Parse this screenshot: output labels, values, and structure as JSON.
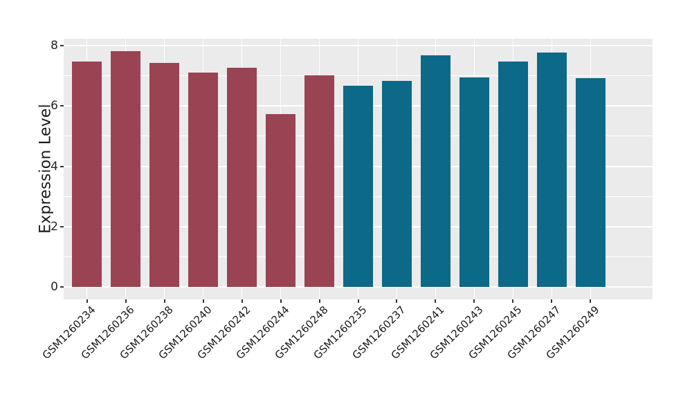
{
  "chart_data": {
    "type": "bar",
    "title": "",
    "xlabel": "",
    "ylabel": "Expression Level",
    "categories": [
      "GSM1260234",
      "GSM1260236",
      "GSM1260238",
      "GSM1260240",
      "GSM1260242",
      "GSM1260244",
      "GSM1260248",
      "GSM1260235",
      "GSM1260237",
      "GSM1260241",
      "GSM1260243",
      "GSM1260245",
      "GSM1260247",
      "GSM1260249"
    ],
    "values": [
      7.48,
      7.82,
      7.43,
      7.11,
      7.27,
      5.72,
      7.01,
      6.67,
      6.82,
      7.69,
      6.95,
      7.48,
      7.76,
      6.92
    ],
    "bar_colors": [
      "#9A4352",
      "#9A4352",
      "#9A4352",
      "#9A4352",
      "#9A4352",
      "#9A4352",
      "#9A4352",
      "#0C6987",
      "#0C6987",
      "#0C6987",
      "#0C6987",
      "#0C6987",
      "#0C6987",
      "#0C6987"
    ],
    "group_colors": {
      "left_group_red": "#9A4352",
      "right_group_teal": "#0C6987"
    },
    "yticks": [
      0,
      2,
      4,
      6,
      8
    ],
    "ylim": [
      0,
      8.2
    ],
    "grid": {
      "major_lines": [
        0,
        2,
        4,
        6,
        8
      ],
      "minor_lines": [
        1,
        3,
        5,
        7
      ],
      "grid_color": "#FFFFFF",
      "panel_background": "#EBEBEB"
    },
    "x_tick_rotation": 45,
    "legend_position": "none",
    "figure_background": "#FFFFFF",
    "tick_mark_color": "#333333",
    "text_color": "#1A1A1A"
  }
}
